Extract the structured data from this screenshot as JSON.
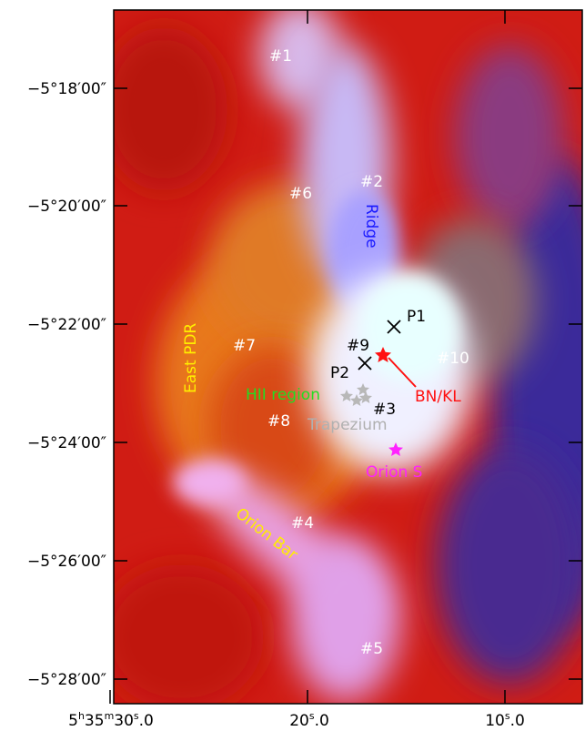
{
  "axes": {
    "y_ticks": [
      "−5°18′00″",
      "−5°20′00″",
      "−5°22′00″",
      "−5°24′00″",
      "−5°26′00″",
      "−5°28′00″"
    ],
    "x_ticks": [
      "5h35m30s.0",
      "20s.0",
      "10s.0"
    ],
    "x_tick_parts": [
      {
        "h": "5",
        "hs": "h",
        "m": "35",
        "ms": "m",
        "s": "30",
        "ss": "s",
        "frac": ".0"
      },
      {
        "s": "20",
        "ss": "s",
        "frac": ".0"
      },
      {
        "s": "10",
        "ss": "s",
        "frac": ".0"
      }
    ]
  },
  "labels": {
    "p1": "#1",
    "p2": "#2",
    "p3": "#3",
    "p4": "#4",
    "p5": "#5",
    "p6": "#6",
    "p7": "#7",
    "p8": "#8",
    "p9": "#9",
    "p10": "#10",
    "ridge": "Ridge",
    "east_pdr": "East PDR",
    "hii_region": "HII region",
    "trapezium": "Trapezium",
    "orion_bar": "Orion Bar",
    "bnkl": "BN/KL",
    "orion_s": "Orion S",
    "P1": "P1",
    "P2": "P2"
  },
  "colors": {
    "ridge": "#1a1aff",
    "east_pdr": "#ffee00",
    "hii_region": "#22dd22",
    "trapezium": "#b0b0b0",
    "orion_bar": "#ffee00",
    "bnkl": "#ff1111",
    "orion_s": "#ff22ff",
    "white_label": "#ffffff",
    "black_label": "#000000"
  }
}
